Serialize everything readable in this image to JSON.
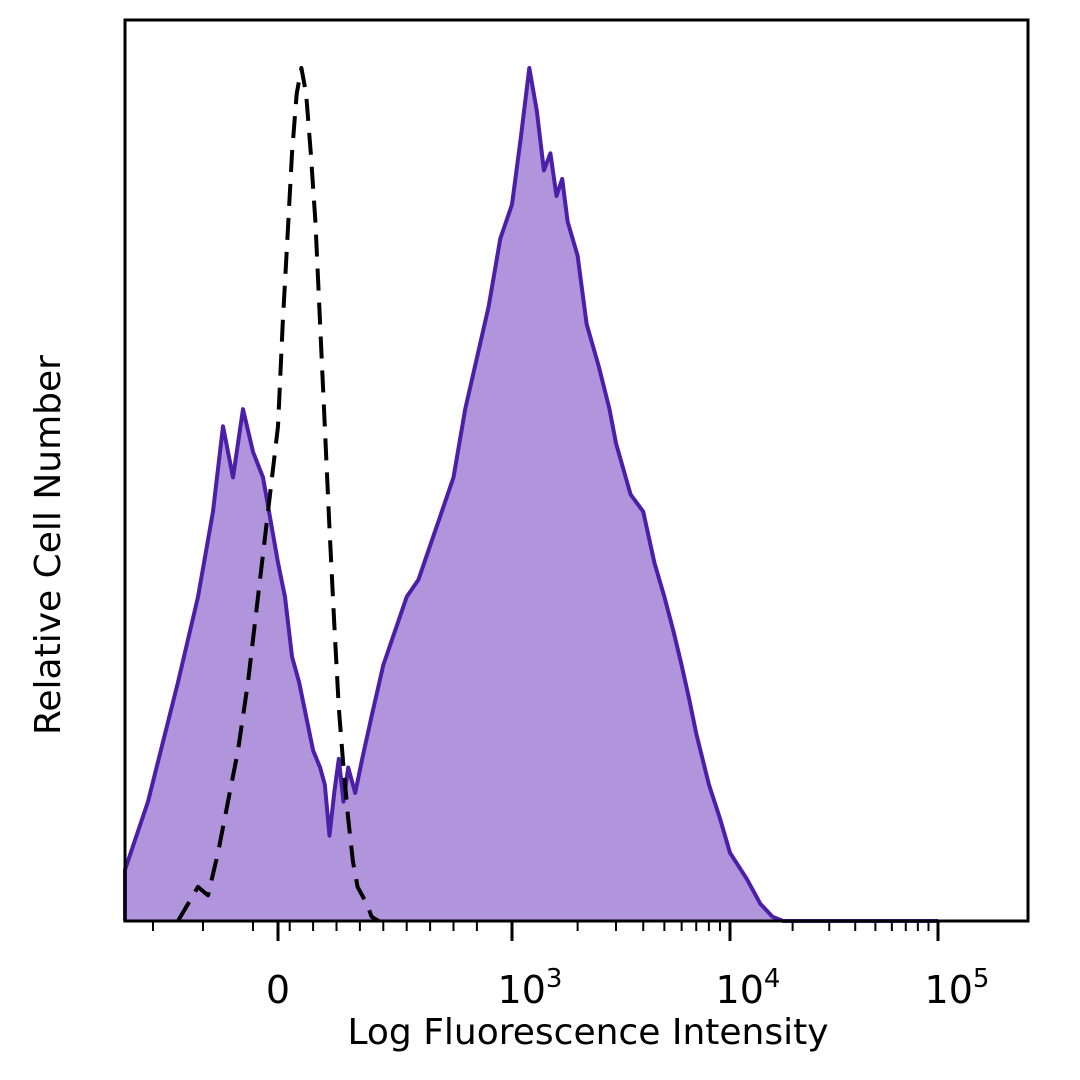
{
  "chart_data": {
    "type": "area",
    "xlabel": "Log Fluorescence Intensity",
    "ylabel": "Relative Cell Number",
    "x_scale": "biexponential",
    "x_tick_labels": [
      {
        "base": "0",
        "exp": ""
      },
      {
        "base": "10",
        "exp": "3"
      },
      {
        "base": "10",
        "exp": "4"
      },
      {
        "base": "10",
        "exp": "5"
      }
    ],
    "y_ticks_shown": false,
    "grid": false,
    "legend": "none",
    "colors": {
      "stained_fill": "#b195dc",
      "stained_line": "#4b1fa8",
      "control_line": "#000000"
    },
    "series": [
      {
        "style": "filled-solid",
        "points": [
          [
            -400,
            0
          ],
          [
            -320,
            6
          ],
          [
            -260,
            14
          ],
          [
            -200,
            28
          ],
          [
            -160,
            38
          ],
          [
            -130,
            48
          ],
          [
            -110,
            58
          ],
          [
            -90,
            52
          ],
          [
            -70,
            60
          ],
          [
            -50,
            55
          ],
          [
            -30,
            52
          ],
          [
            0,
            42
          ],
          [
            30,
            38
          ],
          [
            60,
            31
          ],
          [
            90,
            28
          ],
          [
            120,
            24
          ],
          [
            150,
            20
          ],
          [
            180,
            18
          ],
          [
            200,
            16
          ],
          [
            220,
            10
          ],
          [
            240,
            15
          ],
          [
            260,
            19
          ],
          [
            280,
            14
          ],
          [
            300,
            18
          ],
          [
            330,
            15
          ],
          [
            360,
            19
          ],
          [
            400,
            24
          ],
          [
            450,
            30
          ],
          [
            500,
            34
          ],
          [
            550,
            38
          ],
          [
            600,
            40
          ],
          [
            650,
            44
          ],
          [
            700,
            48
          ],
          [
            750,
            52
          ],
          [
            800,
            60
          ],
          [
            850,
            66
          ],
          [
            900,
            72
          ],
          [
            950,
            80
          ],
          [
            1000,
            84
          ],
          [
            1100,
            92
          ],
          [
            1200,
            100
          ],
          [
            1300,
            95
          ],
          [
            1400,
            88
          ],
          [
            1500,
            90
          ],
          [
            1600,
            85
          ],
          [
            1700,
            87
          ],
          [
            1800,
            82
          ],
          [
            2000,
            78
          ],
          [
            2200,
            70
          ],
          [
            2500,
            65
          ],
          [
            2800,
            60
          ],
          [
            3000,
            56
          ],
          [
            3500,
            50
          ],
          [
            4000,
            48
          ],
          [
            4500,
            42
          ],
          [
            5000,
            38
          ],
          [
            5500,
            34
          ],
          [
            6000,
            30
          ],
          [
            6500,
            26
          ],
          [
            7000,
            22
          ],
          [
            8000,
            16
          ],
          [
            9000,
            12
          ],
          [
            10000,
            8
          ],
          [
            12000,
            5
          ],
          [
            14000,
            2
          ],
          [
            16000,
            0.5
          ],
          [
            18000,
            0
          ],
          [
            100000,
            0
          ]
        ]
      },
      {
        "style": "dashed",
        "points": [
          [
            -200,
            0
          ],
          [
            -180,
            2
          ],
          [
            -160,
            4
          ],
          [
            -140,
            3
          ],
          [
            -120,
            8
          ],
          [
            -100,
            14
          ],
          [
            -80,
            20
          ],
          [
            -60,
            28
          ],
          [
            -40,
            38
          ],
          [
            -20,
            48
          ],
          [
            0,
            58
          ],
          [
            20,
            70
          ],
          [
            40,
            80
          ],
          [
            60,
            90
          ],
          [
            80,
            97
          ],
          [
            100,
            100
          ],
          [
            120,
            97
          ],
          [
            140,
            90
          ],
          [
            160,
            82
          ],
          [
            180,
            70
          ],
          [
            200,
            58
          ],
          [
            220,
            46
          ],
          [
            240,
            35
          ],
          [
            260,
            25
          ],
          [
            280,
            18
          ],
          [
            300,
            12
          ],
          [
            320,
            7
          ],
          [
            340,
            4
          ],
          [
            360,
            3
          ],
          [
            380,
            2
          ],
          [
            400,
            0.5
          ],
          [
            430,
            0
          ]
        ]
      }
    ]
  }
}
